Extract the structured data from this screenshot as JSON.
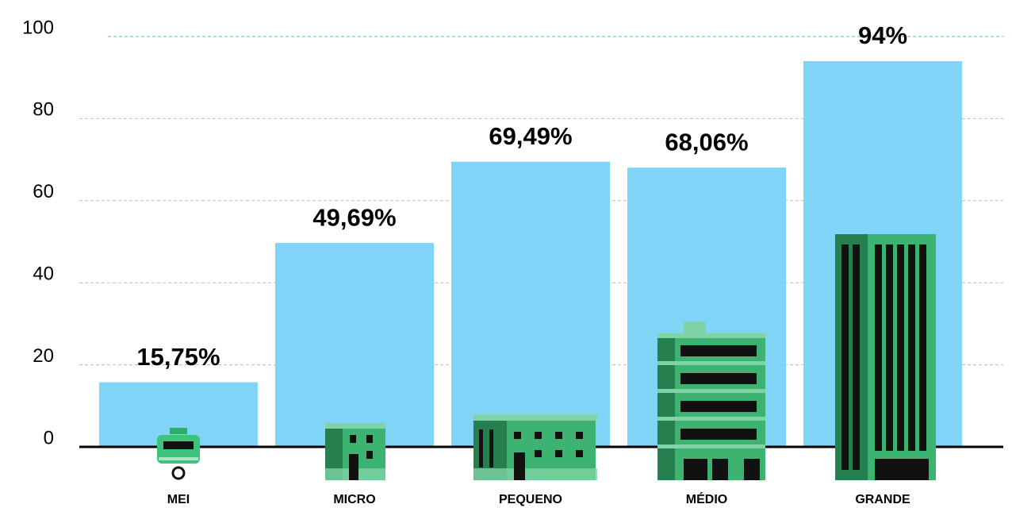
{
  "chart_data": {
    "type": "bar",
    "categories": [
      "MEI",
      "MICRO",
      "PEQUENO",
      "MÉDIO",
      "GRANDE"
    ],
    "values": [
      15.75,
      49.69,
      69.49,
      68.06,
      94
    ],
    "value_labels": [
      "15,75%",
      "49,69%",
      "69,49%",
      "68,06%",
      "94%"
    ],
    "color": "#80d4f5",
    "ylim": [
      0,
      100
    ],
    "yticks": [
      0,
      20,
      40,
      60,
      80,
      100
    ],
    "grid": true
  }
}
